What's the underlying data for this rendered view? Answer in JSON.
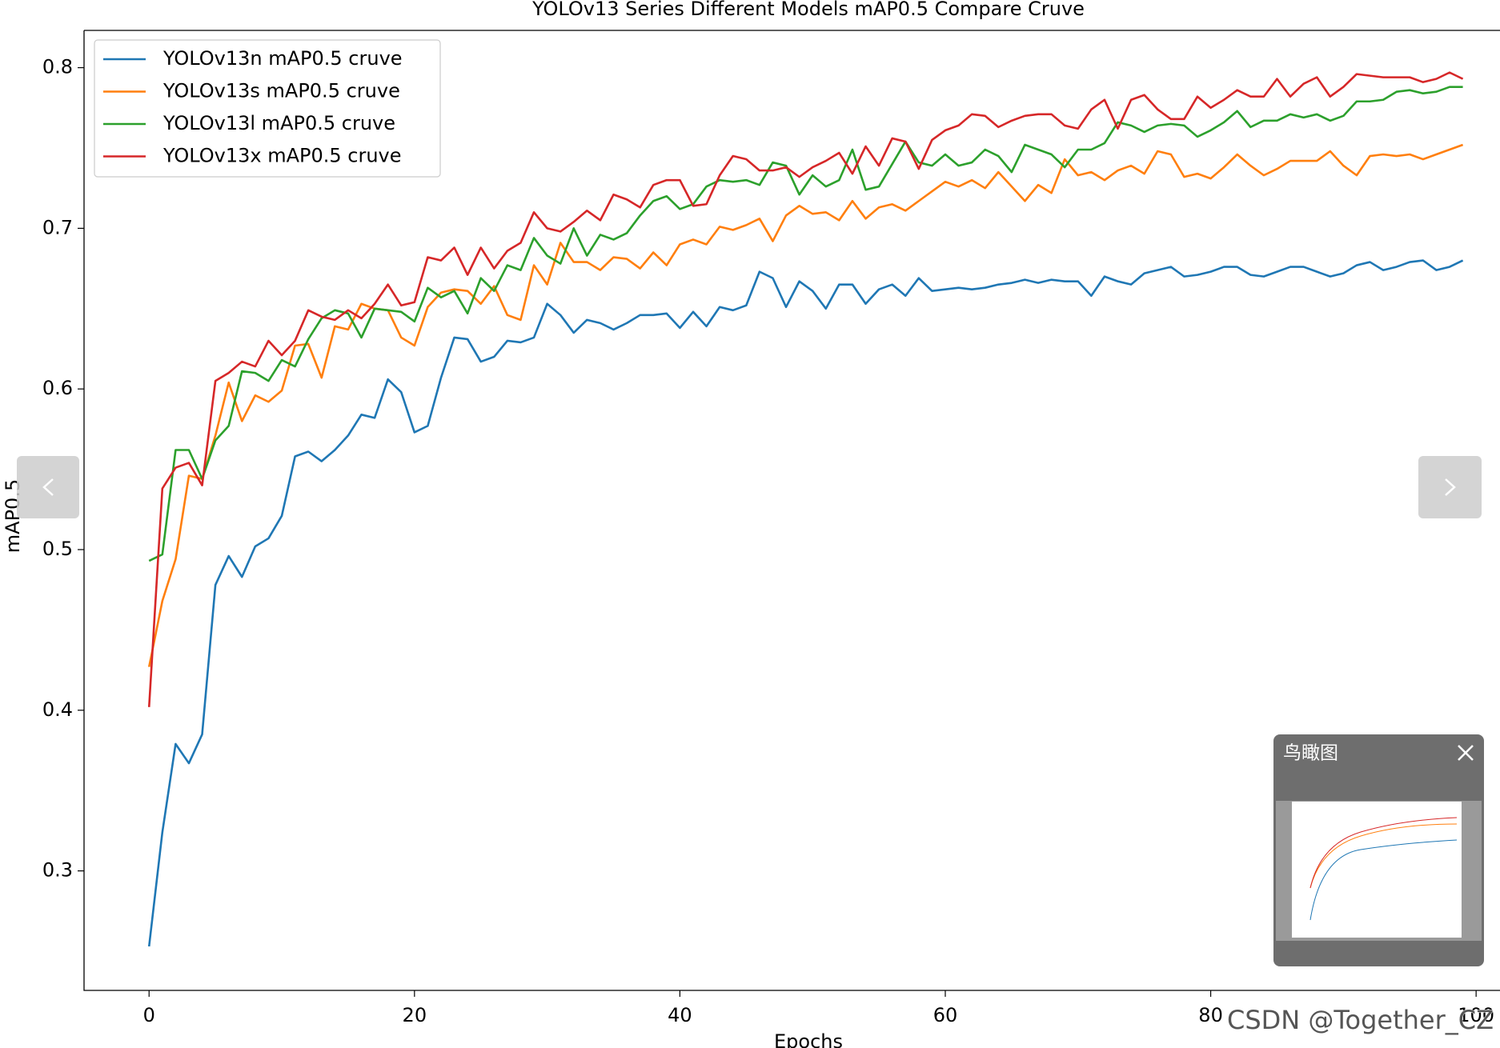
{
  "chart_data": {
    "type": "line",
    "title": "YOLOv13 Series Different Models mAP0.5 Compare Cruve",
    "xlabel": "Epochs",
    "ylabel": "mAP0.5",
    "x": [
      0,
      1,
      2,
      3,
      4,
      5,
      6,
      7,
      8,
      9,
      10,
      11,
      12,
      13,
      14,
      15,
      16,
      17,
      18,
      19,
      20,
      21,
      22,
      23,
      24,
      25,
      26,
      27,
      28,
      29,
      30,
      31,
      32,
      33,
      34,
      35,
      36,
      37,
      38,
      39,
      40,
      41,
      42,
      43,
      44,
      45,
      46,
      47,
      48,
      49,
      50,
      51,
      52,
      53,
      54,
      55,
      56,
      57,
      58,
      59,
      60,
      61,
      62,
      63,
      64,
      65,
      66,
      67,
      68,
      69,
      70,
      71,
      72,
      73,
      74,
      75,
      76,
      77,
      78,
      79,
      80,
      81,
      82,
      83,
      84,
      85,
      86,
      87,
      88,
      89,
      90,
      91,
      92,
      93,
      94,
      95,
      96,
      97,
      98,
      99
    ],
    "series": [
      {
        "name": "YOLOv13n mAP0.5 cruve",
        "color": "#1f77b4",
        "values": [
          0.253,
          0.324,
          0.379,
          0.367,
          0.385,
          0.478,
          0.496,
          0.483,
          0.502,
          0.507,
          0.521,
          0.558,
          0.561,
          0.555,
          0.562,
          0.571,
          0.584,
          0.582,
          0.606,
          0.598,
          0.573,
          0.577,
          0.607,
          0.632,
          0.631,
          0.617,
          0.62,
          0.63,
          0.629,
          0.632,
          0.653,
          0.646,
          0.635,
          0.643,
          0.641,
          0.637,
          0.641,
          0.646,
          0.646,
          0.647,
          0.638,
          0.648,
          0.639,
          0.651,
          0.649,
          0.652,
          0.673,
          0.669,
          0.651,
          0.667,
          0.661,
          0.65,
          0.665,
          0.665,
          0.653,
          0.662,
          0.665,
          0.658,
          0.669,
          0.661,
          0.662,
          0.663,
          0.662,
          0.663,
          0.665,
          0.666,
          0.668,
          0.666,
          0.668,
          0.667,
          0.667,
          0.658,
          0.67,
          0.667,
          0.665,
          0.672,
          0.674,
          0.676,
          0.67,
          0.671,
          0.673,
          0.676,
          0.676,
          0.671,
          0.67,
          0.673,
          0.676,
          0.676,
          0.673,
          0.67,
          0.672,
          0.677,
          0.679,
          0.674,
          0.676,
          0.679,
          0.68,
          0.674,
          0.676,
          0.68
        ]
      },
      {
        "name": "YOLOv13s mAP0.5 cruve",
        "color": "#ff7f0e",
        "values": [
          0.427,
          0.468,
          0.494,
          0.546,
          0.544,
          0.571,
          0.604,
          0.58,
          0.596,
          0.592,
          0.599,
          0.627,
          0.628,
          0.607,
          0.639,
          0.637,
          0.653,
          0.65,
          0.649,
          0.632,
          0.627,
          0.651,
          0.66,
          0.662,
          0.661,
          0.653,
          0.664,
          0.646,
          0.643,
          0.677,
          0.665,
          0.691,
          0.679,
          0.679,
          0.674,
          0.682,
          0.681,
          0.675,
          0.685,
          0.677,
          0.69,
          0.693,
          0.69,
          0.701,
          0.699,
          0.702,
          0.706,
          0.692,
          0.708,
          0.714,
          0.709,
          0.71,
          0.705,
          0.717,
          0.706,
          0.713,
          0.715,
          0.711,
          0.717,
          0.723,
          0.729,
          0.726,
          0.73,
          0.725,
          0.735,
          0.726,
          0.717,
          0.727,
          0.722,
          0.743,
          0.733,
          0.735,
          0.73,
          0.736,
          0.739,
          0.734,
          0.748,
          0.746,
          0.732,
          0.734,
          0.731,
          0.738,
          0.746,
          0.739,
          0.733,
          0.737,
          0.742,
          0.742,
          0.742,
          0.748,
          0.739,
          0.733,
          0.745,
          0.746,
          0.745,
          0.746,
          0.743,
          0.746,
          0.749,
          0.752
        ]
      },
      {
        "name": "YOLOv13l mAP0.5 cruve",
        "color": "#2ca02c",
        "values": [
          0.493,
          0.497,
          0.562,
          0.562,
          0.544,
          0.568,
          0.577,
          0.611,
          0.61,
          0.605,
          0.618,
          0.614,
          0.631,
          0.644,
          0.649,
          0.647,
          0.632,
          0.65,
          0.649,
          0.648,
          0.642,
          0.663,
          0.657,
          0.661,
          0.647,
          0.669,
          0.661,
          0.677,
          0.674,
          0.694,
          0.683,
          0.678,
          0.7,
          0.683,
          0.696,
          0.693,
          0.697,
          0.708,
          0.717,
          0.72,
          0.712,
          0.715,
          0.726,
          0.73,
          0.729,
          0.73,
          0.727,
          0.741,
          0.739,
          0.721,
          0.733,
          0.726,
          0.73,
          0.749,
          0.724,
          0.726,
          0.74,
          0.754,
          0.741,
          0.739,
          0.746,
          0.739,
          0.741,
          0.749,
          0.745,
          0.735,
          0.752,
          0.749,
          0.746,
          0.738,
          0.749,
          0.749,
          0.753,
          0.766,
          0.764,
          0.76,
          0.764,
          0.765,
          0.764,
          0.757,
          0.761,
          0.766,
          0.773,
          0.763,
          0.767,
          0.767,
          0.771,
          0.769,
          0.771,
          0.767,
          0.77,
          0.779,
          0.779,
          0.78,
          0.785,
          0.786,
          0.784,
          0.785,
          0.788,
          0.788
        ]
      },
      {
        "name": "YOLOv13x mAP0.5 cruve",
        "color": "#d62728",
        "values": [
          0.402,
          0.538,
          0.551,
          0.554,
          0.54,
          0.605,
          0.61,
          0.617,
          0.614,
          0.63,
          0.621,
          0.63,
          0.649,
          0.645,
          0.643,
          0.649,
          0.644,
          0.653,
          0.665,
          0.652,
          0.654,
          0.682,
          0.68,
          0.688,
          0.671,
          0.688,
          0.675,
          0.686,
          0.691,
          0.71,
          0.7,
          0.698,
          0.704,
          0.711,
          0.705,
          0.721,
          0.718,
          0.713,
          0.727,
          0.73,
          0.73,
          0.714,
          0.715,
          0.733,
          0.745,
          0.743,
          0.736,
          0.736,
          0.738,
          0.732,
          0.738,
          0.742,
          0.747,
          0.734,
          0.751,
          0.739,
          0.756,
          0.754,
          0.737,
          0.755,
          0.761,
          0.764,
          0.771,
          0.77,
          0.763,
          0.767,
          0.77,
          0.771,
          0.771,
          0.764,
          0.762,
          0.774,
          0.78,
          0.762,
          0.78,
          0.783,
          0.774,
          0.768,
          0.768,
          0.782,
          0.775,
          0.78,
          0.786,
          0.782,
          0.782,
          0.793,
          0.782,
          0.79,
          0.794,
          0.782,
          0.788,
          0.796,
          0.795,
          0.794,
          0.794,
          0.794,
          0.791,
          0.793,
          0.797,
          0.793
        ]
      }
    ],
    "xlim": [
      -4.9,
      101.8
    ],
    "xticks": [
      0,
      20,
      40,
      60,
      80,
      100
    ],
    "ylim": [
      0.2256,
      0.8232
    ],
    "yticks": [
      0.3,
      0.4,
      0.5,
      0.6,
      0.7,
      0.8
    ],
    "grid": false,
    "legend": "upper left"
  },
  "viewer": {
    "minimap_title": "鸟瞰图",
    "watermark": "CSDN @Together_CZ"
  }
}
